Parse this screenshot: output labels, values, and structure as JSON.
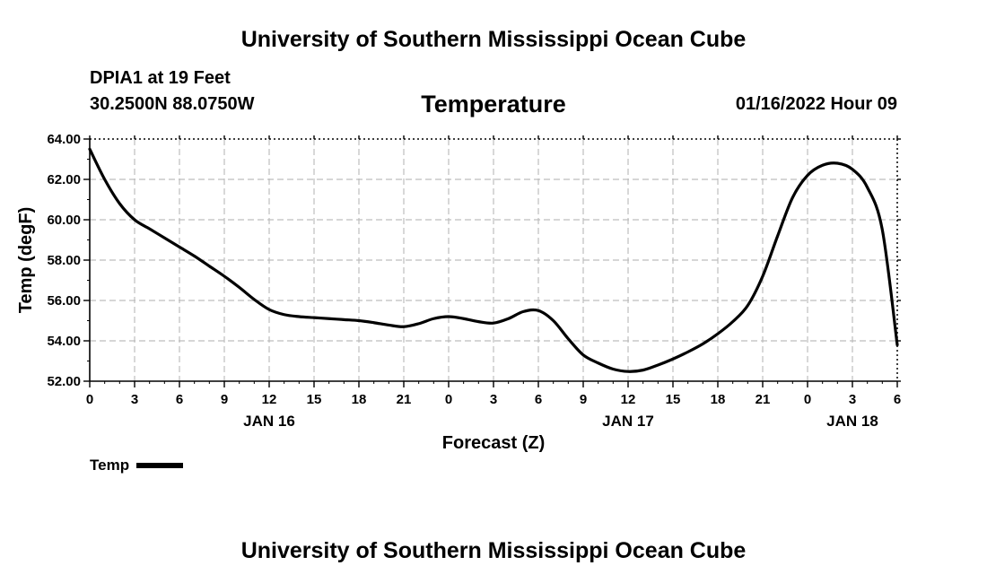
{
  "header": {
    "top_title": "University of Southern Mississippi Ocean Cube",
    "station": "DPIA1 at 19 Feet",
    "coords": "30.2500N  88.0750W",
    "chart_title": "Temperature",
    "datetime": "01/16/2022 Hour 09",
    "bottom_title": "University of Southern Mississippi Ocean Cube"
  },
  "legend": {
    "label": "Temp"
  },
  "chart_data": {
    "type": "line",
    "title": "Temperature",
    "xlabel": "Forecast (Z)",
    "ylabel": "Temp (degF)",
    "ylim": [
      52,
      64
    ],
    "xlim": [
      0,
      54
    ],
    "x_unit": "hours since 2022-01-16 00Z",
    "x_tick_labels": [
      "0",
      "3",
      "6",
      "9",
      "12",
      "15",
      "18",
      "21",
      "0",
      "3",
      "6",
      "9",
      "12",
      "15",
      "18",
      "21",
      "0",
      "3",
      "6"
    ],
    "y_tick_labels": [
      "52.00",
      "54.00",
      "56.00",
      "58.00",
      "60.00",
      "62.00",
      "64.00"
    ],
    "date_labels": [
      {
        "x": 12,
        "label": "JAN 16"
      },
      {
        "x": 36,
        "label": "JAN 17"
      },
      {
        "x": 51,
        "label": "JAN 18"
      }
    ],
    "grid": true,
    "series": [
      {
        "name": "Temp",
        "color": "#000000",
        "x": [
          0,
          1,
          2,
          3,
          4,
          5,
          6,
          7,
          8,
          9,
          10,
          11,
          12,
          13,
          14,
          15,
          16,
          17,
          18,
          19,
          20,
          21,
          22,
          23,
          24,
          25,
          26,
          27,
          28,
          29,
          30,
          31,
          32,
          33,
          34,
          35,
          36,
          37,
          38,
          39,
          40,
          41,
          42,
          43,
          44,
          45,
          46,
          47,
          48,
          49,
          50,
          51,
          52,
          53,
          54
        ],
        "values": [
          63.5,
          62.0,
          60.8,
          60.0,
          59.55,
          59.1,
          58.65,
          58.2,
          57.7,
          57.2,
          56.65,
          56.05,
          55.55,
          55.3,
          55.2,
          55.15,
          55.1,
          55.05,
          55.0,
          54.9,
          54.78,
          54.7,
          54.85,
          55.1,
          55.2,
          55.1,
          54.95,
          54.88,
          55.1,
          55.45,
          55.5,
          55.0,
          54.1,
          53.3,
          52.9,
          52.6,
          52.48,
          52.55,
          52.8,
          53.1,
          53.45,
          53.85,
          54.35,
          54.95,
          55.75,
          57.2,
          59.2,
          61.1,
          62.2,
          62.7,
          62.8,
          62.5,
          61.6,
          59.5,
          53.8
        ]
      }
    ]
  }
}
